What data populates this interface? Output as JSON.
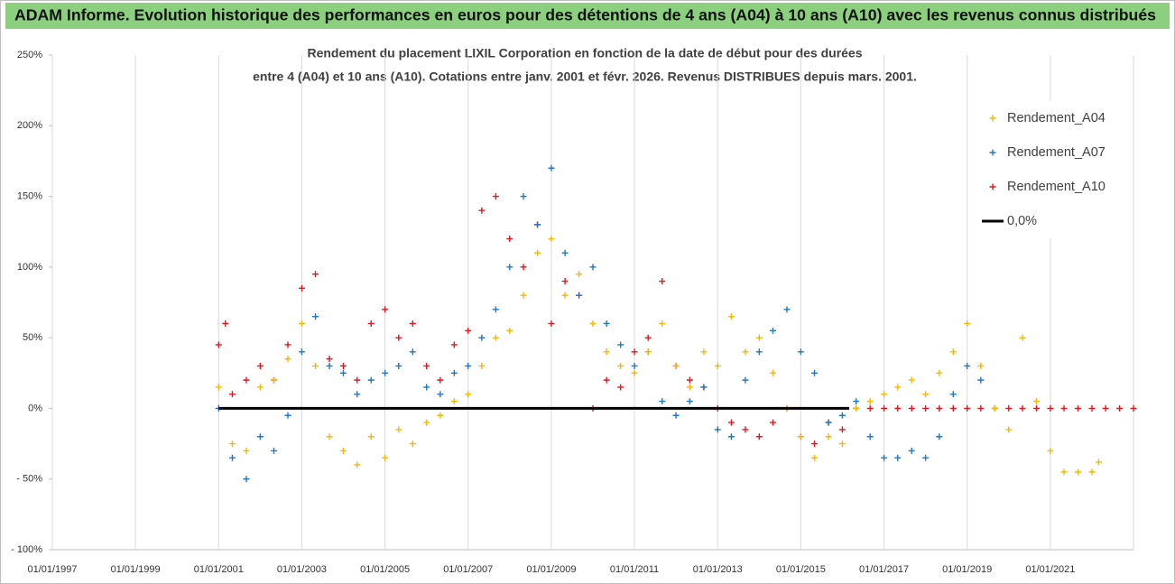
{
  "chart_data": {
    "type": "scatter",
    "header": "ADAM Informe. Evolution historique des performances en euros pour des détentions de 4 ans (A04) à 10 ans (A10) avec les revenus connus distribués",
    "title": [
      "Rendement du placement LIXIL Corporation en fonction de la date de début pour des durées",
      "entre 4 (A04) et 10 ans (A10). Cotations entre janv. 2001 et févr.  2026. Revenus DISTRIBUES depuis mars. 2001."
    ],
    "xlim": [
      "1997-01-01",
      "2023-01-01"
    ],
    "xticks": [
      {
        "value": "1997-01-01",
        "label": "01/01/1997"
      },
      {
        "value": "1999-01-01",
        "label": "01/01/1999"
      },
      {
        "value": "2001-01-01",
        "label": "01/01/2001"
      },
      {
        "value": "2003-01-01",
        "label": "01/01/2003"
      },
      {
        "value": "2005-01-01",
        "label": "01/01/2005"
      },
      {
        "value": "2007-01-01",
        "label": "01/01/2007"
      },
      {
        "value": "2009-01-01",
        "label": "01/01/2009"
      },
      {
        "value": "2011-01-01",
        "label": "01/01/2011"
      },
      {
        "value": "2013-01-01",
        "label": "01/01/2013"
      },
      {
        "value": "2015-01-01",
        "label": "01/01/2015"
      },
      {
        "value": "2017-01-01",
        "label": "01/01/2017"
      },
      {
        "value": "2019-01-01",
        "label": "01/01/2019"
      },
      {
        "value": "2021-01-01",
        "label": "01/01/2021"
      }
    ],
    "ylim": [
      -100,
      250
    ],
    "yticks": [
      {
        "value": 250,
        "label": "250%"
      },
      {
        "value": 200,
        "label": "200%"
      },
      {
        "value": 150,
        "label": "150%"
      },
      {
        "value": 100,
        "label": "100%"
      },
      {
        "value": 50,
        "label": "50%"
      },
      {
        "value": 0,
        "label": "0%"
      },
      {
        "value": -50,
        "label": "- 50%"
      },
      {
        "value": -100,
        "label": "- 100%"
      }
    ],
    "grid": "x",
    "legend": "top-right",
    "series": [
      {
        "name": "Rendement_A04",
        "color": "#f5b800",
        "marker": "plus",
        "x": [
          "2001-01-01",
          "2001-05-01",
          "2001-09-01",
          "2002-01-01",
          "2002-05-01",
          "2002-09-01",
          "2003-01-01",
          "2003-05-01",
          "2003-09-01",
          "2004-01-01",
          "2004-05-01",
          "2004-09-01",
          "2005-01-01",
          "2005-05-01",
          "2005-09-01",
          "2006-01-01",
          "2006-05-01",
          "2006-09-01",
          "2007-01-01",
          "2007-05-01",
          "2007-09-01",
          "2008-01-01",
          "2008-05-01",
          "2008-09-01",
          "2009-01-01",
          "2009-05-01",
          "2009-09-01",
          "2010-01-01",
          "2010-05-01",
          "2010-09-01",
          "2011-01-01",
          "2011-05-01",
          "2011-09-01",
          "2012-01-01",
          "2012-05-01",
          "2012-09-01",
          "2013-01-01",
          "2013-05-01",
          "2013-09-01",
          "2014-01-01",
          "2014-05-01",
          "2014-09-01",
          "2015-01-01",
          "2015-05-01",
          "2015-09-01",
          "2016-01-01",
          "2016-05-01",
          "2016-09-01",
          "2017-01-01",
          "2017-05-01",
          "2017-09-01",
          "2018-01-01",
          "2018-05-01",
          "2018-09-01",
          "2019-01-01",
          "2019-05-01",
          "2019-09-01",
          "2020-01-01",
          "2020-05-01",
          "2020-09-01",
          "2021-01-01",
          "2021-05-01",
          "2021-09-01",
          "2022-01-01",
          "2022-03-01"
        ],
        "values": [
          15,
          -25,
          -30,
          15,
          20,
          35,
          60,
          30,
          -20,
          -30,
          -40,
          -20,
          -35,
          -15,
          -25,
          -10,
          -5,
          5,
          10,
          30,
          50,
          55,
          80,
          110,
          120,
          80,
          95,
          60,
          40,
          30,
          25,
          40,
          60,
          30,
          15,
          40,
          30,
          65,
          40,
          50,
          25,
          0,
          -20,
          -35,
          -20,
          -25,
          0,
          5,
          10,
          15,
          20,
          10,
          25,
          40,
          60,
          30,
          0,
          -15,
          50,
          5,
          -30,
          -45,
          -45,
          -45,
          -38
        ]
      },
      {
        "name": "Rendement_A07",
        "color": "#1f77c8",
        "marker": "plus",
        "x": [
          "2001-01-01",
          "2001-05-01",
          "2001-09-01",
          "2002-01-01",
          "2002-05-01",
          "2002-09-01",
          "2003-01-01",
          "2003-05-01",
          "2003-09-01",
          "2004-01-01",
          "2004-05-01",
          "2004-09-01",
          "2005-01-01",
          "2005-05-01",
          "2005-09-01",
          "2006-01-01",
          "2006-05-01",
          "2006-09-01",
          "2007-01-01",
          "2007-05-01",
          "2007-09-01",
          "2008-01-01",
          "2008-05-01",
          "2008-09-01",
          "2009-01-01",
          "2009-05-01",
          "2009-09-01",
          "2010-01-01",
          "2010-05-01",
          "2010-09-01",
          "2011-01-01",
          "2011-05-01",
          "2011-09-01",
          "2012-01-01",
          "2012-05-01",
          "2012-09-01",
          "2013-01-01",
          "2013-05-01",
          "2013-09-01",
          "2014-01-01",
          "2014-05-01",
          "2014-09-01",
          "2015-01-01",
          "2015-05-01",
          "2015-09-01",
          "2016-01-01",
          "2016-05-01",
          "2016-09-01",
          "2017-01-01",
          "2017-05-01",
          "2017-09-01",
          "2018-01-01",
          "2018-05-01",
          "2018-09-01",
          "2019-01-01",
          "2019-05-01"
        ],
        "values": [
          0,
          -35,
          -50,
          -20,
          -30,
          -5,
          40,
          65,
          30,
          25,
          10,
          20,
          25,
          30,
          40,
          15,
          10,
          25,
          30,
          50,
          70,
          100,
          150,
          130,
          170,
          110,
          80,
          100,
          60,
          45,
          30,
          40,
          5,
          -5,
          5,
          15,
          -15,
          -20,
          20,
          40,
          55,
          70,
          40,
          25,
          -10,
          -5,
          5,
          -20,
          -35,
          -35,
          -30,
          -35,
          -20,
          10,
          30,
          20
        ]
      },
      {
        "name": "Rendement_A10",
        "color": "#e8141c",
        "marker": "plus",
        "x": [
          "2001-01-01",
          "2001-03-01",
          "2001-05-01",
          "2001-09-01",
          "2002-01-01",
          "2002-05-01",
          "2002-09-01",
          "2003-01-01",
          "2003-05-01",
          "2003-09-01",
          "2004-01-01",
          "2004-05-01",
          "2004-09-01",
          "2005-01-01",
          "2005-05-01",
          "2005-09-01",
          "2006-01-01",
          "2006-05-01",
          "2006-09-01",
          "2007-01-01",
          "2007-05-01",
          "2007-09-01",
          "2008-01-01",
          "2008-05-01",
          "2008-09-01",
          "2009-01-01",
          "2009-05-01",
          "2009-09-01",
          "2010-01-01",
          "2010-05-01",
          "2010-09-01",
          "2011-01-01",
          "2011-05-01",
          "2011-09-01",
          "2012-01-01",
          "2012-05-01",
          "2012-09-01",
          "2013-01-01",
          "2013-05-01",
          "2013-09-01",
          "2014-01-01",
          "2014-05-01",
          "2014-09-01",
          "2015-01-01",
          "2015-05-01",
          "2015-09-01",
          "2016-01-01",
          "2016-05-01",
          "2016-09-01",
          "2017-01-01",
          "2017-05-01",
          "2017-09-01",
          "2018-01-01",
          "2018-05-01",
          "2018-09-01",
          "2019-01-01",
          "2019-05-01",
          "2019-09-01",
          "2020-01-01",
          "2020-05-01",
          "2020-09-01",
          "2021-01-01",
          "2021-05-01",
          "2021-09-01",
          "2022-01-01",
          "2022-05-01",
          "2022-09-01",
          "2023-01-01"
        ],
        "values": [
          45,
          60,
          10,
          20,
          30,
          20,
          45,
          85,
          95,
          35,
          30,
          20,
          60,
          70,
          50,
          60,
          30,
          20,
          45,
          55,
          140,
          150,
          120,
          100,
          130,
          60,
          90,
          80,
          0,
          20,
          15,
          40,
          50,
          90,
          30,
          20,
          15,
          0,
          -10,
          -15,
          -20,
          -10,
          0,
          -20,
          -25,
          -10,
          -15,
          0,
          0,
          0,
          0,
          0,
          0,
          0,
          0,
          0,
          0,
          0,
          0,
          0,
          0,
          0,
          0,
          0,
          0,
          0,
          0,
          0
        ]
      },
      {
        "name": "0,0%",
        "color": "#000000",
        "marker": "line",
        "x": [
          "2001-01-01",
          "2016-03-01"
        ],
        "values": [
          0,
          0
        ]
      }
    ]
  }
}
